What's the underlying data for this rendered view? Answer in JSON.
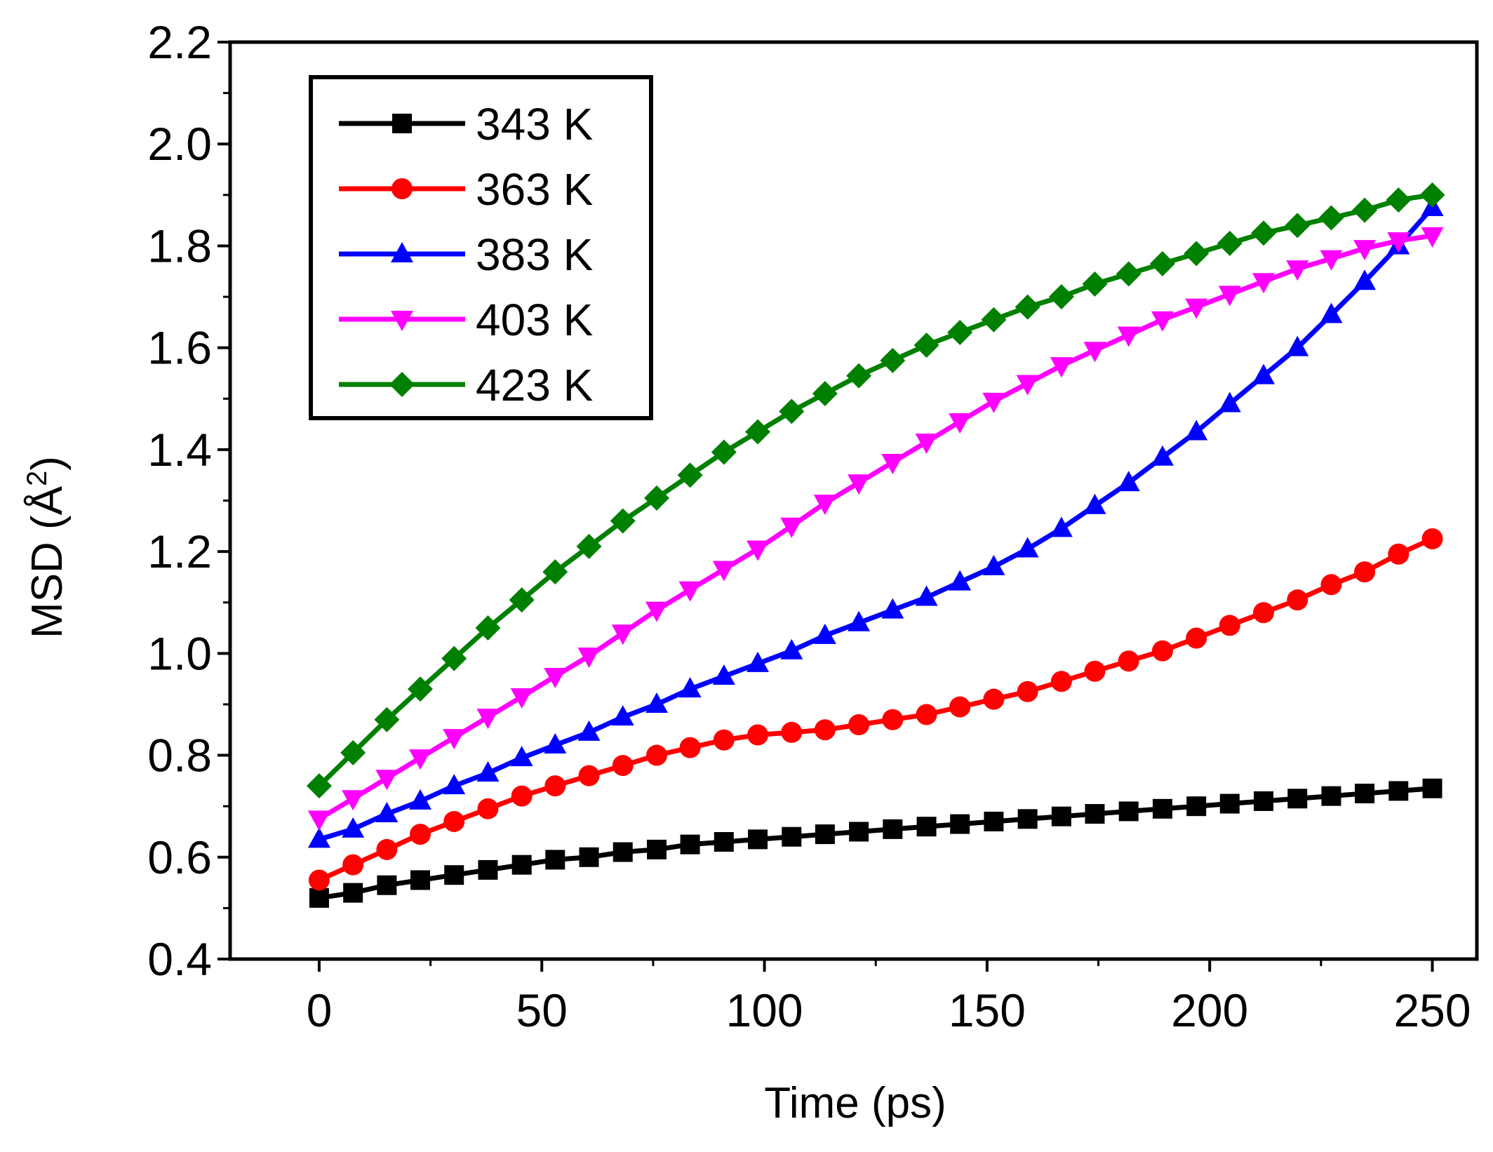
{
  "chart_data": {
    "type": "line",
    "title": "",
    "xlabel": "Time (ps)",
    "ylabel_main": "MSD (Å",
    "ylabel_sup": "2",
    "ylabel_close": ")",
    "xlim": [
      -20,
      260
    ],
    "ylim": [
      0.4,
      2.2
    ],
    "x_ticks": [
      0,
      50,
      100,
      150,
      200,
      250
    ],
    "y_ticks": [
      0.4,
      0.6,
      0.8,
      1.0,
      1.2,
      1.4,
      1.6,
      1.8,
      2.0,
      2.2
    ],
    "x_tick_labels": [
      "0",
      "50",
      "100",
      "150",
      "200",
      "250"
    ],
    "y_tick_labels": [
      "0.4",
      "0.6",
      "0.8",
      "1.0",
      "1.2",
      "1.4",
      "1.6",
      "1.8",
      "2.0",
      "2.2"
    ],
    "x": [
      0,
      7.6,
      15.2,
      22.7,
      30.3,
      37.9,
      45.5,
      53,
      60.6,
      68.2,
      75.8,
      83.3,
      90.9,
      98.5,
      106.1,
      113.6,
      121.2,
      128.8,
      136.4,
      143.9,
      151.5,
      159.1,
      166.7,
      174.2,
      181.8,
      189.4,
      197,
      204.5,
      212.1,
      219.7,
      227.3,
      234.8,
      242.4,
      250
    ],
    "legend_position": "top-left",
    "series": [
      {
        "name": "343 K",
        "color": "#000000",
        "marker": "square",
        "values": [
          0.52,
          0.53,
          0.545,
          0.555,
          0.565,
          0.575,
          0.585,
          0.595,
          0.6,
          0.61,
          0.615,
          0.625,
          0.63,
          0.635,
          0.64,
          0.645,
          0.65,
          0.655,
          0.66,
          0.665,
          0.67,
          0.675,
          0.68,
          0.685,
          0.69,
          0.695,
          0.7,
          0.705,
          0.71,
          0.715,
          0.72,
          0.725,
          0.73,
          0.735
        ]
      },
      {
        "name": "363 K",
        "color": "#ff0000",
        "marker": "circle",
        "values": [
          0.555,
          0.585,
          0.615,
          0.645,
          0.67,
          0.695,
          0.72,
          0.74,
          0.76,
          0.78,
          0.8,
          0.815,
          0.83,
          0.84,
          0.845,
          0.85,
          0.86,
          0.87,
          0.88,
          0.895,
          0.91,
          0.925,
          0.945,
          0.965,
          0.985,
          1.005,
          1.03,
          1.055,
          1.08,
          1.105,
          1.135,
          1.16,
          1.195,
          1.225
        ]
      },
      {
        "name": "383 K",
        "color": "#0000ff",
        "marker": "triangle-up",
        "values": [
          0.635,
          0.655,
          0.685,
          0.71,
          0.74,
          0.765,
          0.795,
          0.82,
          0.845,
          0.875,
          0.9,
          0.93,
          0.955,
          0.98,
          1.005,
          1.035,
          1.06,
          1.085,
          1.11,
          1.14,
          1.17,
          1.205,
          1.245,
          1.29,
          1.335,
          1.385,
          1.435,
          1.49,
          1.545,
          1.6,
          1.665,
          1.73,
          1.8,
          1.875
        ]
      },
      {
        "name": "403 K",
        "color": "#ff00ff",
        "marker": "triangle-down",
        "values": [
          0.675,
          0.715,
          0.755,
          0.795,
          0.835,
          0.875,
          0.915,
          0.955,
          0.995,
          1.04,
          1.085,
          1.125,
          1.165,
          1.205,
          1.25,
          1.295,
          1.335,
          1.375,
          1.415,
          1.455,
          1.495,
          1.53,
          1.565,
          1.595,
          1.625,
          1.655,
          1.68,
          1.705,
          1.73,
          1.755,
          1.775,
          1.795,
          1.81,
          1.82
        ]
      },
      {
        "name": "423 K",
        "color": "#008000",
        "marker": "diamond",
        "values": [
          0.74,
          0.805,
          0.87,
          0.93,
          0.99,
          1.05,
          1.105,
          1.16,
          1.21,
          1.26,
          1.305,
          1.35,
          1.395,
          1.435,
          1.475,
          1.51,
          1.545,
          1.575,
          1.605,
          1.63,
          1.655,
          1.68,
          1.7,
          1.725,
          1.745,
          1.765,
          1.785,
          1.805,
          1.825,
          1.84,
          1.855,
          1.87,
          1.89,
          1.9
        ]
      }
    ]
  }
}
